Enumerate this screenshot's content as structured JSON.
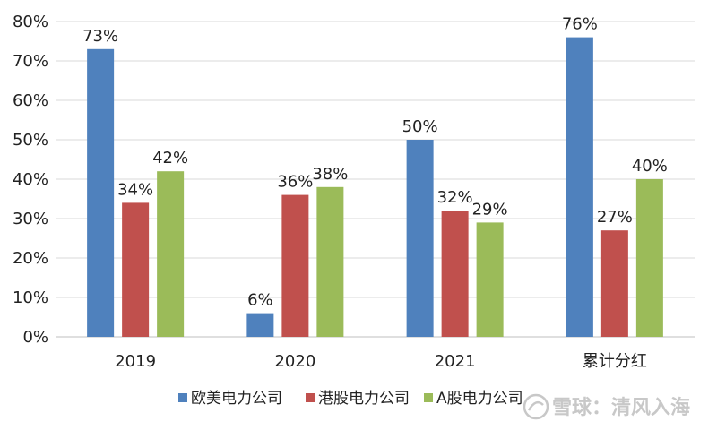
{
  "chart_data": {
    "type": "bar",
    "categories": [
      "2019",
      "2020",
      "2021",
      "累计分红"
    ],
    "series": [
      {
        "name": "欧美电力公司",
        "color": "#4F81BD",
        "values": [
          73,
          6,
          50,
          76
        ],
        "labels": [
          "73%",
          "6%",
          "50%",
          "76%"
        ]
      },
      {
        "name": "港股电力公司",
        "color": "#C0504D",
        "values": [
          34,
          36,
          32,
          27
        ],
        "labels": [
          "34%",
          "36%",
          "32%",
          "27%"
        ]
      },
      {
        "name": "A股电力公司",
        "color": "#9BBB59",
        "values": [
          42,
          38,
          29,
          40
        ],
        "labels": [
          "42%",
          "38%",
          "29%",
          "40%"
        ]
      }
    ],
    "ylim": [
      0,
      80
    ],
    "yticks": [
      "0%",
      "10%",
      "20%",
      "30%",
      "40%",
      "50%",
      "60%",
      "70%",
      "80%"
    ],
    "grid": true,
    "legend": "bottom"
  },
  "watermark": {
    "text": "雪球：清风入海",
    "icon": "snowball-logo-icon"
  }
}
